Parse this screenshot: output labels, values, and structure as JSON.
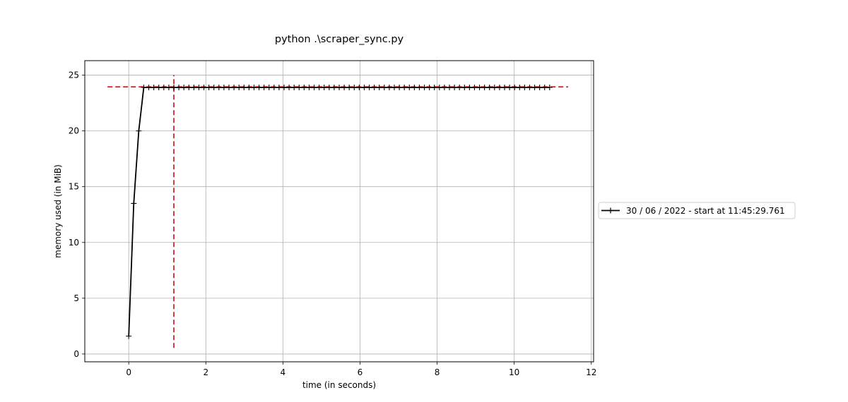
{
  "chart_data": {
    "type": "line",
    "title": "python .\\scraper_sync.py",
    "xlabel": "time (in seconds)",
    "ylabel": "memory used (in MiB)",
    "xlim": [
      -1.14,
      12.06
    ],
    "ylim": [
      -0.7,
      26.3
    ],
    "xticks": [
      0,
      2,
      4,
      6,
      8,
      10,
      12
    ],
    "yticks": [
      0,
      5,
      10,
      15,
      20,
      25
    ],
    "grid": true,
    "legend_position": "right, outside plot area",
    "series": [
      {
        "name": "30 / 06 / 2022 - start at 11:45:29.761",
        "color": "#000000",
        "marker": "+",
        "x": [
          0.0,
          0.13,
          0.26,
          0.39,
          0.52,
          0.65,
          0.78,
          0.91,
          1.04,
          1.17,
          1.3,
          1.43,
          1.56,
          1.69,
          1.82,
          1.95,
          2.08,
          2.21,
          2.34,
          2.47,
          2.6,
          2.73,
          2.86,
          2.99,
          3.12,
          3.25,
          3.38,
          3.51,
          3.64,
          3.77,
          3.9,
          4.03,
          4.16,
          4.29,
          4.42,
          4.55,
          4.68,
          4.81,
          4.94,
          5.07,
          5.2,
          5.33,
          5.46,
          5.59,
          5.72,
          5.85,
          5.98,
          6.11,
          6.24,
          6.37,
          6.5,
          6.63,
          6.76,
          6.89,
          7.02,
          7.15,
          7.28,
          7.41,
          7.54,
          7.67,
          7.8,
          7.93,
          8.06,
          8.19,
          8.32,
          8.45,
          8.58,
          8.71,
          8.84,
          8.97,
          9.1,
          9.23,
          9.36,
          9.49,
          9.62,
          9.75,
          9.88,
          10.01,
          10.14,
          10.27,
          10.4,
          10.53,
          10.66,
          10.79,
          10.92
        ],
        "y": [
          1.6,
          13.5,
          20.0,
          23.9,
          23.9,
          23.9,
          23.9,
          23.9,
          23.9,
          23.9,
          23.9,
          23.9,
          23.9,
          23.9,
          23.9,
          23.9,
          23.9,
          23.9,
          23.9,
          23.9,
          23.9,
          23.9,
          23.9,
          23.9,
          23.9,
          23.9,
          23.9,
          23.9,
          23.9,
          23.9,
          23.9,
          23.9,
          23.9,
          23.9,
          23.9,
          23.9,
          23.9,
          23.9,
          23.9,
          23.9,
          23.9,
          23.9,
          23.9,
          23.9,
          23.9,
          23.9,
          23.9,
          23.9,
          23.9,
          23.9,
          23.9,
          23.9,
          23.9,
          23.9,
          23.9,
          23.9,
          23.9,
          23.9,
          23.9,
          23.9,
          23.9,
          23.9,
          23.9,
          23.9,
          23.9,
          23.9,
          23.9,
          23.9,
          23.9,
          23.9,
          23.9,
          23.9,
          23.9,
          23.9,
          23.9,
          23.9,
          23.9,
          23.9,
          23.9,
          23.9,
          23.9,
          23.9,
          23.9,
          23.9,
          23.9
        ]
      }
    ],
    "annotations": [
      {
        "kind": "horizontal-dashed-line",
        "color": "#d62728",
        "y": 23.95,
        "x_from": -0.55,
        "x_to": 11.4
      },
      {
        "kind": "vertical-dashed-line",
        "color": "#d62728",
        "x": 1.17,
        "y_from": 0.55,
        "y_to": 25.0
      }
    ]
  }
}
